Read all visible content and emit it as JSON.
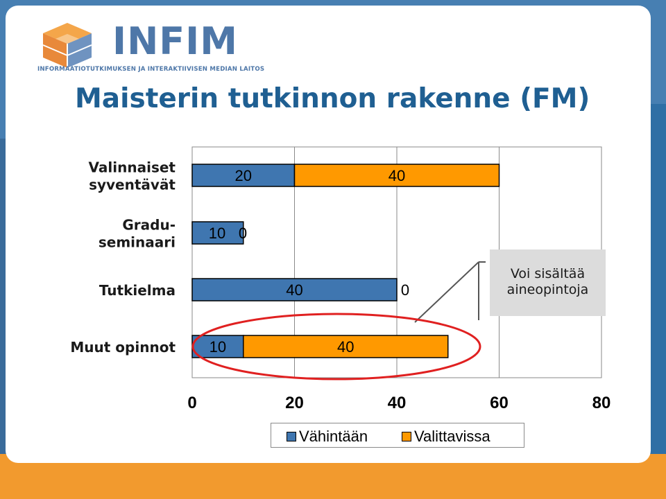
{
  "brand": {
    "name": "INFIM",
    "subtitle": "INFORMAATIOTUTKIMUKSEN JA INTERAKTIIVISEN MEDIAN LAITOS"
  },
  "slide": {
    "title": "Maisterin tutkinnon rakenne (FM)"
  },
  "callout": {
    "line1": "Voi sisältää",
    "line2": "aineopintoja"
  },
  "colors": {
    "series_min": "#3f76b0",
    "series_opt": "#ff9900",
    "highlight_ellipse": "#e02020",
    "background": "#2f6fa5",
    "title": "#1f5f92"
  },
  "chart_data": {
    "type": "bar",
    "orientation": "horizontal",
    "stacked": true,
    "categories": [
      [
        "Valinnaiset",
        "syventävät"
      ],
      [
        "Gradu-",
        "seminaari"
      ],
      [
        "Tutkielma"
      ],
      [
        "Muut opinnot"
      ]
    ],
    "series": [
      {
        "name": "Vähintään",
        "values": [
          20,
          10,
          40,
          10
        ]
      },
      {
        "name": "Valittavissa",
        "values": [
          40,
          0,
          0,
          40
        ]
      }
    ],
    "xlim": [
      0,
      80
    ],
    "xticks": [
      "0",
      "20",
      "40",
      "60",
      "80"
    ],
    "grid": "vertical",
    "legend": "bottom",
    "highlight": "Muut opinnot"
  }
}
